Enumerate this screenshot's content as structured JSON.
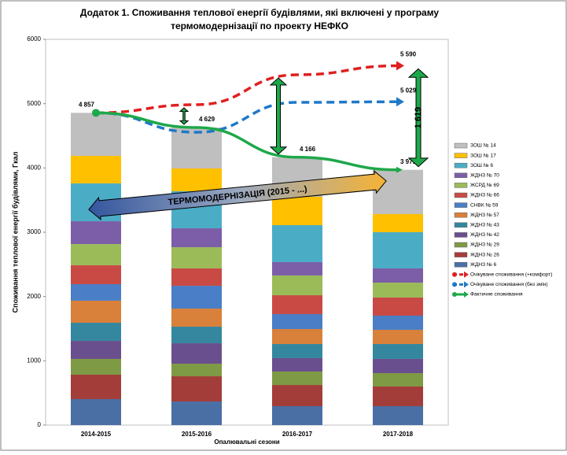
{
  "chart_data": {
    "type": "bar",
    "stacked": true,
    "title": [
      "Додаток 1. Споживання теплової енергії будівлями, які включені у програму",
      "термомодернізації по проекту НЕФКО"
    ],
    "x_label": "Опалювальні сезони",
    "y_label": "Споживання теплової енергії будівлями, Гкал",
    "categories": [
      "2014-2015",
      "2015-2016",
      "2016-2017",
      "2017-2018"
    ],
    "ylim": [
      0,
      6000
    ],
    "yticks": [
      0,
      1000,
      2000,
      3000,
      4000,
      5000,
      6000
    ],
    "grid": false,
    "legend": "right",
    "series": [
      {
        "name": "ЖДНЗ № 6",
        "color": "#4a6fa5",
        "values": [
          404,
          367,
          294,
          294
        ]
      },
      {
        "name": "ЖДНЗ № 26",
        "color": "#a33d3a",
        "values": [
          380,
          392,
          330,
          306
        ]
      },
      {
        "name": "ЖДНЗ № 29",
        "color": "#7f9a44",
        "values": [
          245,
          196,
          209,
          208
        ]
      },
      {
        "name": "ЖДНЗ № 42",
        "color": "#6a4f8e",
        "values": [
          281,
          318,
          208,
          221
        ]
      },
      {
        "name": "ЖДНЗ № 43",
        "color": "#35879f",
        "values": [
          282,
          258,
          220,
          232
        ]
      },
      {
        "name": "ЖДНЗ № 57",
        "color": "#d9803a",
        "values": [
          343,
          281,
          233,
          221
        ]
      },
      {
        "name": "СНВК № 59",
        "color": "#4a7ec6",
        "values": [
          257,
          355,
          233,
          220
        ]
      },
      {
        "name": "ЖДНЗ № 66",
        "color": "#c94a45",
        "values": [
          294,
          270,
          293,
          282
        ]
      },
      {
        "name": "ЖСРД № 69",
        "color": "#9bbb59",
        "values": [
          330,
          330,
          307,
          232
        ]
      },
      {
        "name": "ЖДНЗ № 70",
        "color": "#7c5ea8",
        "values": [
          355,
          294,
          208,
          221
        ]
      },
      {
        "name": "ЗОШ № 6",
        "color": "#4bacc6",
        "values": [
          588,
          576,
          575,
          563
        ]
      },
      {
        "name": "ЗОШ № 17",
        "color": "#ffc000",
        "values": [
          429,
          355,
          441,
          282
        ]
      },
      {
        "name": "ЗОШ № 14",
        "color": "#bfbfbf",
        "values": [
          669,
          637,
          615,
          689
        ]
      },
      {
        "name": "Очікуване споживання (+комфорт)",
        "type": "line",
        "dashed": true,
        "color": "#e02020",
        "values": [
          4857,
          4984,
          5449,
          5590
        ],
        "value_labels": [
          null,
          null,
          null,
          "5 590"
        ]
      },
      {
        "name": "Очікуване споживання (без змін)",
        "type": "line",
        "dashed": true,
        "color": "#1f78c8",
        "values": [
          4857,
          4555,
          5020,
          5029
        ],
        "value_labels": [
          null,
          null,
          null,
          "5 029"
        ]
      },
      {
        "name": "Фактичне споживання",
        "type": "line",
        "dashed": false,
        "color": "#1ea84a",
        "values": [
          4857,
          4629,
          4166,
          3971
        ],
        "value_labels": [
          "4 857",
          "4 629",
          "4 166",
          "3 971"
        ]
      }
    ],
    "annotations": {
      "banner": "ТЕРМОМОДЕРНІЗАЦІЯ  (2015 - ...)",
      "gap_label": "1 619"
    }
  }
}
